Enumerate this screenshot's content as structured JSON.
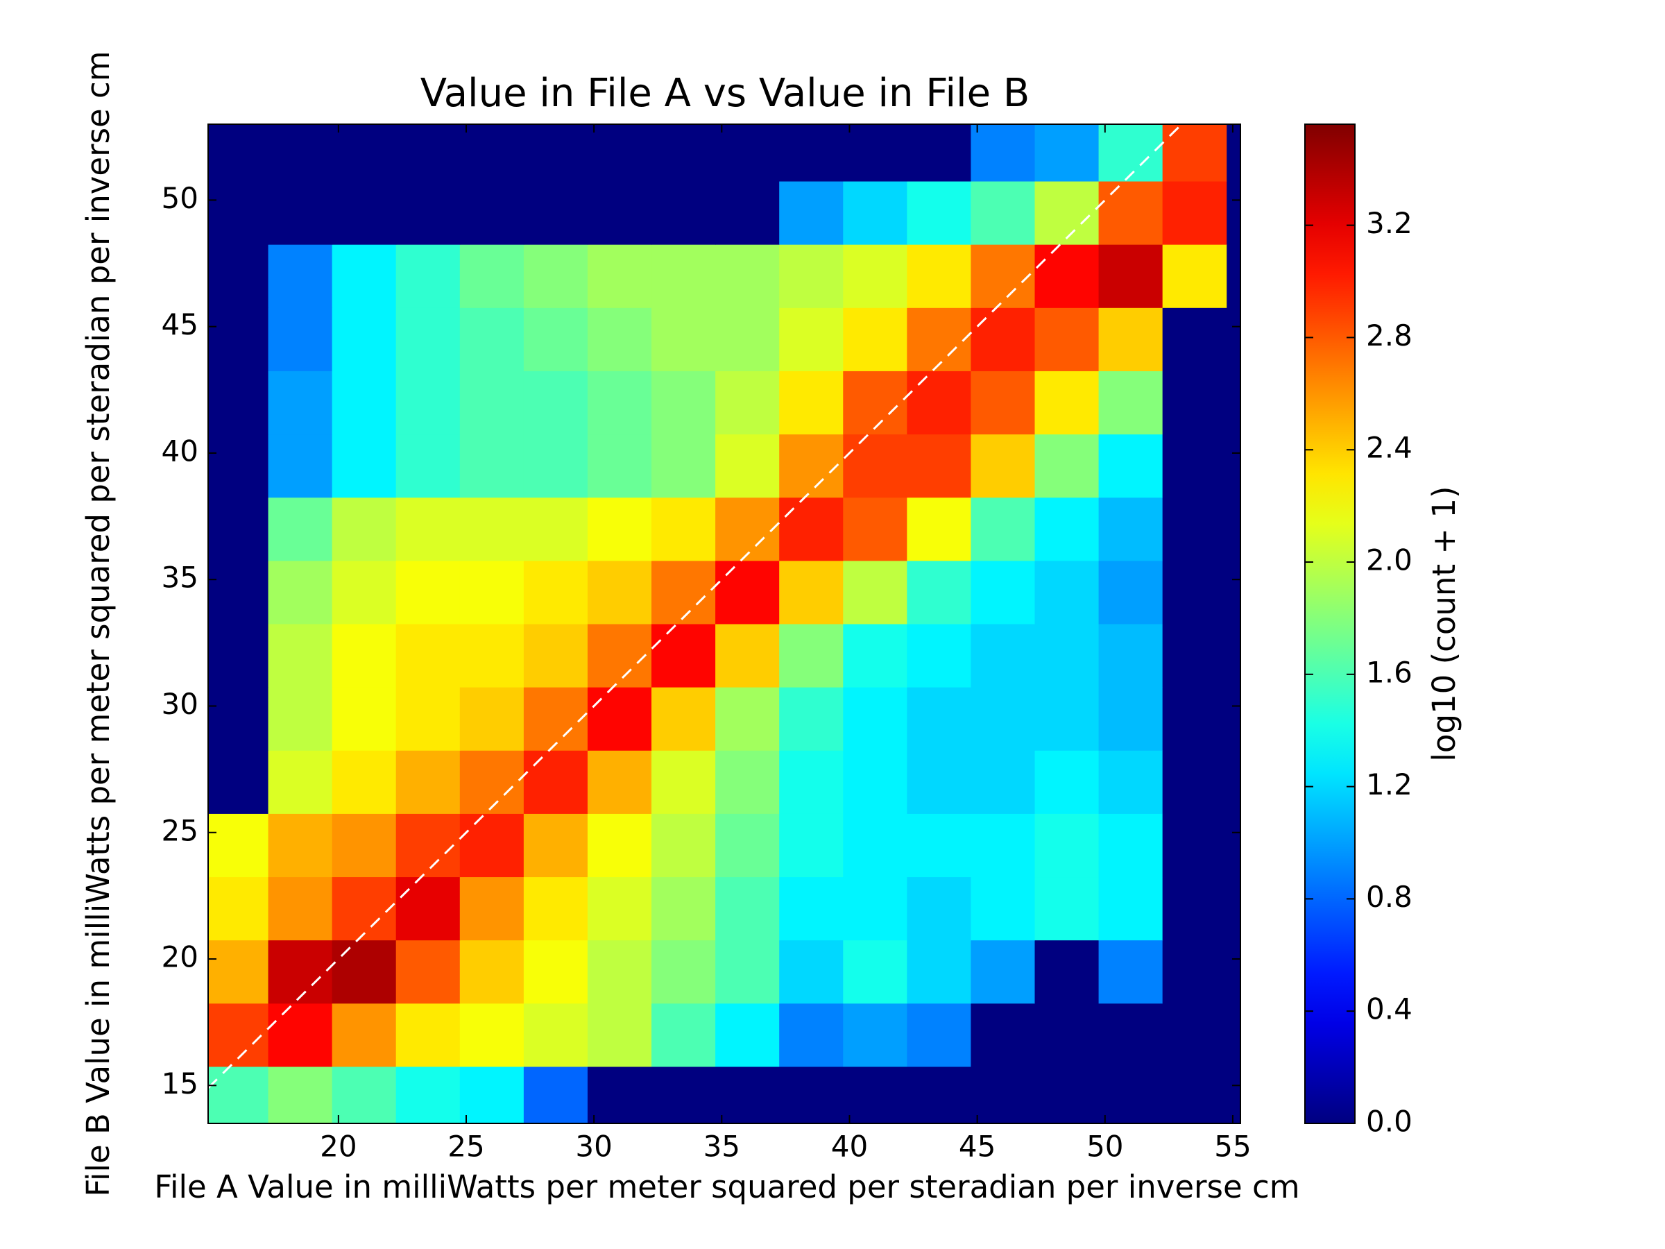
{
  "chart_data": {
    "type": "hexbin",
    "title": "Value in File A vs Value in File B",
    "xlabel": "File A Value in milliWatts per meter squared per steradian per inverse cm",
    "ylabel": "File B Value in milliWatts per meter squared per steradian per inverse cm",
    "x": [
      16,
      18.5,
      21,
      23.5,
      26,
      28.5,
      31,
      33.5,
      36,
      38.5,
      41,
      43.5,
      46,
      48.5,
      51,
      53.5
    ],
    "y": [
      14.5,
      17,
      19.5,
      22,
      24.5,
      27,
      29.5,
      32,
      34.5,
      37,
      39.5,
      42,
      44.5,
      47,
      49.5,
      52
    ],
    "z": [
      [
        1.6,
        1.8,
        1.6,
        1.4,
        1.3,
        0.8,
        0,
        0,
        0,
        0,
        0,
        0,
        0,
        0,
        0,
        0
      ],
      [
        2.9,
        3.1,
        2.6,
        2.3,
        2.2,
        2.1,
        2.0,
        1.6,
        1.3,
        0.9,
        1.0,
        0.9,
        0,
        0,
        0,
        0
      ],
      [
        2.5,
        3.3,
        3.4,
        2.8,
        2.4,
        2.2,
        2.0,
        1.8,
        1.6,
        1.2,
        1.4,
        1.2,
        1.0,
        0,
        0.9,
        0
      ],
      [
        2.3,
        2.6,
        2.9,
        3.2,
        2.6,
        2.3,
        2.1,
        1.9,
        1.6,
        1.3,
        1.3,
        1.2,
        1.3,
        1.4,
        1.3,
        0
      ],
      [
        2.2,
        2.5,
        2.6,
        2.9,
        3.0,
        2.5,
        2.2,
        2.0,
        1.7,
        1.4,
        1.3,
        1.3,
        1.3,
        1.4,
        1.3,
        0
      ],
      [
        0,
        2.1,
        2.3,
        2.5,
        2.7,
        3.0,
        2.5,
        2.1,
        1.8,
        1.4,
        1.3,
        1.2,
        1.2,
        1.3,
        1.2,
        0
      ],
      [
        0,
        2.0,
        2.2,
        2.3,
        2.4,
        2.7,
        3.1,
        2.4,
        1.9,
        1.5,
        1.3,
        1.2,
        1.2,
        1.2,
        1.1,
        0
      ],
      [
        0,
        2.0,
        2.2,
        2.3,
        2.3,
        2.4,
        2.7,
        3.1,
        2.4,
        1.8,
        1.4,
        1.3,
        1.2,
        1.2,
        1.1,
        0
      ],
      [
        0,
        1.9,
        2.1,
        2.2,
        2.2,
        2.3,
        2.4,
        2.7,
        3.1,
        2.4,
        2.0,
        1.5,
        1.3,
        1.2,
        1.0,
        0
      ],
      [
        0,
        1.7,
        2.0,
        2.1,
        2.1,
        2.1,
        2.2,
        2.3,
        2.6,
        3.0,
        2.8,
        2.2,
        1.6,
        1.3,
        1.1,
        0
      ],
      [
        0,
        1.0,
        1.3,
        1.5,
        1.6,
        1.6,
        1.7,
        1.8,
        2.1,
        2.6,
        2.9,
        2.9,
        2.4,
        1.8,
        1.3,
        0
      ],
      [
        0,
        1.0,
        1.3,
        1.5,
        1.6,
        1.6,
        1.7,
        1.8,
        2.0,
        2.3,
        2.8,
        3.0,
        2.8,
        2.3,
        1.8,
        0
      ],
      [
        0,
        0.9,
        1.3,
        1.5,
        1.6,
        1.7,
        1.8,
        1.9,
        1.9,
        2.1,
        2.3,
        2.7,
        3.0,
        2.8,
        2.4,
        0
      ],
      [
        0,
        0.9,
        1.3,
        1.5,
        1.7,
        1.8,
        1.9,
        1.9,
        1.9,
        2.0,
        2.1,
        2.3,
        2.7,
        3.1,
        3.3,
        2.3
      ],
      [
        0,
        0,
        0,
        0,
        0,
        0,
        0,
        0,
        0,
        1.0,
        1.2,
        1.4,
        1.6,
        2.0,
        2.8,
        3.0
      ],
      [
        0,
        0,
        0,
        0,
        0,
        0,
        0,
        0,
        0,
        0,
        0,
        0,
        0.9,
        1.0,
        1.5,
        2.9
      ]
    ],
    "xlim": [
      14.9,
      55.3
    ],
    "ylim": [
      13.5,
      53
    ],
    "xticks": [
      20,
      25,
      30,
      35,
      40,
      45,
      50,
      55
    ],
    "yticks": [
      15,
      20,
      25,
      30,
      35,
      40,
      45,
      50
    ],
    "colormap": "jet",
    "colorbar": {
      "label": "log10 (count + 1)",
      "lim": [
        0,
        3.56
      ],
      "ticks": [
        {
          "value": 0,
          "label": "0.0"
        },
        0.4,
        0.8,
        1.2,
        1.6,
        {
          "value": 2,
          "label": "2.0"
        },
        2.4,
        2.8,
        3.2
      ]
    }
  }
}
